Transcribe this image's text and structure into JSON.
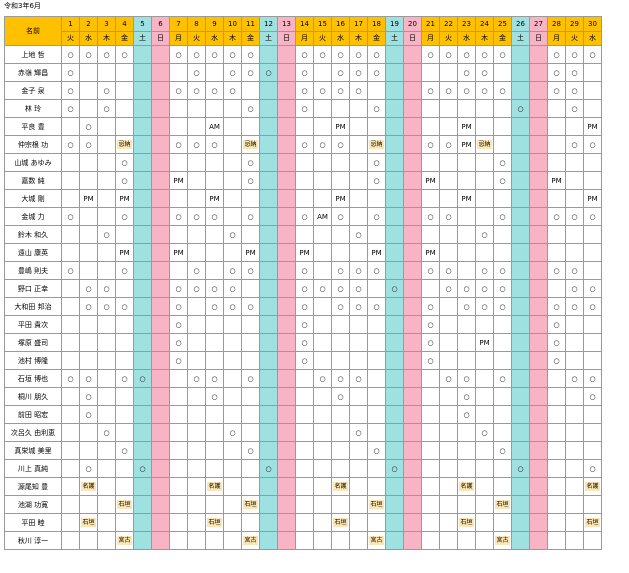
{
  "title": "令和3年6月",
  "name_header": "名前",
  "days": [
    "1",
    "2",
    "3",
    "4",
    "5",
    "6",
    "7",
    "8",
    "9",
    "10",
    "11",
    "12",
    "13",
    "14",
    "15",
    "16",
    "17",
    "18",
    "19",
    "20",
    "21",
    "22",
    "23",
    "24",
    "25",
    "26",
    "27",
    "28",
    "29",
    "30"
  ],
  "weekdays": [
    "火",
    "水",
    "木",
    "金",
    "土",
    "日",
    "月",
    "火",
    "水",
    "木",
    "金",
    "土",
    "日",
    "月",
    "火",
    "水",
    "木",
    "金",
    "土",
    "日",
    "月",
    "火",
    "水",
    "木",
    "金",
    "土",
    "日",
    "月",
    "火",
    "水"
  ],
  "weekend": {
    "sat": [
      5,
      12,
      19,
      26
    ],
    "sun": [
      6,
      13,
      20,
      27
    ]
  },
  "colors": {
    "header": "#ffc000",
    "saturday": "#9fe0e0",
    "sunday": "#f8b4c4",
    "tag": "#fbe6b4"
  },
  "rows": [
    {
      "name": "上地 哲",
      "marks": {
        "1": "○",
        "2": "○",
        "3": "○",
        "4": "○",
        "7": "○",
        "8": "○",
        "9": "○",
        "10": "○",
        "11": "○",
        "14": "○",
        "15": "○",
        "16": "○",
        "17": "○",
        "18": "○",
        "21": "○",
        "22": "○",
        "23": "○",
        "24": "○",
        "25": "○",
        "28": "○",
        "29": "○",
        "30": "○"
      }
    },
    {
      "name": "赤嶺 輝昌",
      "marks": {
        "1": "○",
        "8": "○",
        "10": "○",
        "11": "○",
        "12": "○",
        "14": "○",
        "16": "○",
        "17": "○",
        "18": "○",
        "23": "○",
        "24": "○",
        "28": "○",
        "29": "○"
      }
    },
    {
      "name": "金子 泉",
      "marks": {
        "1": "○",
        "3": "○",
        "7": "○",
        "8": "○",
        "9": "○",
        "10": "○",
        "14": "○",
        "15": "○",
        "16": "○",
        "17": "○",
        "21": "○",
        "22": "○",
        "23": "○",
        "24": "○",
        "25": "○",
        "28": "○",
        "29": "○"
      }
    },
    {
      "name": "林 玲",
      "marks": {
        "1": "○",
        "3": "○",
        "11": "○",
        "14": "○",
        "18": "○",
        "26": "○",
        "29": "○"
      }
    },
    {
      "name": "平良 豊",
      "marks": {
        "2": "○",
        "9": "AM",
        "16": "PM",
        "23": "PM",
        "30": "PM"
      }
    },
    {
      "name": "仲宗根 功",
      "marks": {
        "1": "○",
        "2": "○",
        "4": "忌納",
        "7": "○",
        "8": "○",
        "9": "○",
        "11": "忌納",
        "14": "○",
        "15": "○",
        "16": "○",
        "18": "忌納",
        "21": "○",
        "22": "○",
        "23": "PM",
        "24": "忌納",
        "29": "○",
        "30": "○"
      }
    },
    {
      "name": "山城 あゆみ",
      "marks": {
        "4": "○",
        "11": "○",
        "18": "○",
        "25": "○"
      }
    },
    {
      "name": "嘉数 純",
      "marks": {
        "4": "○",
        "7": "PM",
        "11": "○",
        "18": "○",
        "21": "PM",
        "25": "○",
        "28": "PM"
      }
    },
    {
      "name": "大城 剛",
      "marks": {
        "2": "PM",
        "4": "PM",
        "9": "PM",
        "16": "PM",
        "23": "PM",
        "30": "PM"
      }
    },
    {
      "name": "金城 力",
      "marks": {
        "1": "○",
        "4": "○",
        "7": "○",
        "8": "○",
        "9": "○",
        "11": "○",
        "14": "○",
        "15": "AM",
        "16": "○",
        "18": "○",
        "21": "○",
        "22": "○",
        "25": "○",
        "28": "○",
        "29": "○",
        "30": "○"
      }
    },
    {
      "name": "鈴木 和久",
      "marks": {
        "3": "○",
        "10": "○",
        "17": "○",
        "24": "○"
      }
    },
    {
      "name": "遠山 康英",
      "marks": {
        "4": "PM",
        "7": "PM",
        "11": "PM",
        "14": "PM",
        "18": "PM",
        "21": "PM"
      }
    },
    {
      "name": "豊嶋 則夫",
      "marks": {
        "1": "○",
        "4": "○",
        "8": "○",
        "10": "○",
        "11": "○",
        "14": "○",
        "16": "○",
        "17": "○",
        "18": "○",
        "21": "○",
        "22": "○",
        "24": "○",
        "25": "○",
        "28": "○",
        "29": "○"
      }
    },
    {
      "name": "野口 正幸",
      "marks": {
        "2": "○",
        "3": "○",
        "7": "○",
        "8": "○",
        "9": "○",
        "10": "○",
        "14": "○",
        "15": "○",
        "16": "○",
        "17": "○",
        "19": "○",
        "22": "○",
        "23": "○",
        "24": "○",
        "25": "○",
        "29": "○",
        "30": "○"
      }
    },
    {
      "name": "大和田 邦治",
      "marks": {
        "2": "○",
        "3": "○",
        "4": "○",
        "7": "○",
        "9": "○",
        "10": "○",
        "11": "○",
        "14": "○",
        "16": "○",
        "17": "○",
        "18": "○",
        "21": "○",
        "23": "○",
        "24": "○",
        "25": "○",
        "28": "○",
        "29": "○",
        "30": "○"
      }
    },
    {
      "name": "平田 貴次",
      "marks": {
        "7": "○",
        "14": "○",
        "21": "○",
        "28": "○"
      }
    },
    {
      "name": "塚原 盛司",
      "marks": {
        "7": "○",
        "14": "○",
        "21": "○",
        "24": "PM",
        "28": "○"
      }
    },
    {
      "name": "池村 博隆",
      "marks": {
        "7": "○",
        "14": "○",
        "21": "○",
        "28": "○"
      }
    },
    {
      "name": "石垣 博也",
      "marks": {
        "1": "○",
        "2": "○",
        "4": "○",
        "5": "○",
        "8": "○",
        "9": "○",
        "11": "○",
        "15": "○",
        "16": "○",
        "17": "○",
        "22": "○",
        "23": "○",
        "25": "○",
        "29": "○",
        "30": "○"
      }
    },
    {
      "name": "桐川 朋久",
      "marks": {
        "2": "○",
        "9": "○",
        "16": "○",
        "23": "○",
        "30": "○"
      }
    },
    {
      "name": "前田 昭宏",
      "marks": {
        "2": "○",
        "23": "○"
      }
    },
    {
      "name": "次呂久 由利恵",
      "marks": {
        "3": "○",
        "10": "○",
        "17": "○",
        "24": "○"
      }
    },
    {
      "name": "真栄城 美里",
      "marks": {
        "4": "○",
        "11": "○",
        "18": "○",
        "25": "○"
      }
    },
    {
      "name": "川上 真純",
      "marks": {
        "2": "○",
        "5": "○",
        "12": "○",
        "19": "○",
        "26": "○",
        "30": "○"
      }
    },
    {
      "name": "源尾知 豊",
      "marks": {
        "2": "名護",
        "9": "名護",
        "16": "名護",
        "23": "名護",
        "30": "名護"
      }
    },
    {
      "name": "池湖 功寛",
      "marks": {
        "4": "石垣",
        "11": "石垣",
        "18": "石垣",
        "25": "石垣"
      }
    },
    {
      "name": "平田 睦",
      "marks": {
        "2": "石垣",
        "9": "石垣",
        "16": "石垣",
        "23": "石垣",
        "30": "石垣"
      }
    },
    {
      "name": "秋川 淳一",
      "marks": {
        "4": "宮古",
        "11": "宮古",
        "18": "宮古",
        "25": "宮古"
      }
    }
  ]
}
